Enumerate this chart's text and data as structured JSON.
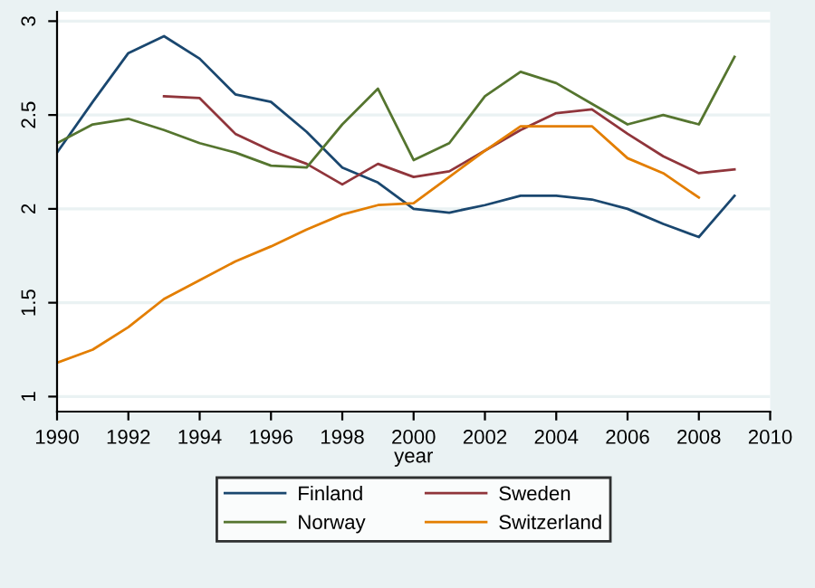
{
  "chart_data": {
    "type": "line",
    "xlabel": "year",
    "x": [
      1990,
      1991,
      1992,
      1993,
      1994,
      1995,
      1996,
      1997,
      1998,
      1999,
      2000,
      2001,
      2002,
      2003,
      2004,
      2005,
      2006,
      2007,
      2008,
      2009
    ],
    "series": [
      {
        "name": "Finland",
        "color": "#1a476f",
        "values": [
          2.3,
          2.57,
          2.83,
          2.92,
          2.8,
          2.61,
          2.57,
          2.41,
          2.22,
          2.14,
          2.0,
          1.98,
          2.02,
          2.07,
          2.07,
          2.05,
          2.0,
          1.92,
          1.85,
          2.07
        ]
      },
      {
        "name": "Sweden",
        "color": "#90353b",
        "values": [
          null,
          null,
          null,
          2.6,
          2.59,
          2.4,
          2.31,
          2.24,
          2.13,
          2.24,
          2.17,
          2.2,
          2.31,
          2.42,
          2.51,
          2.53,
          2.4,
          2.28,
          2.19,
          2.21
        ]
      },
      {
        "name": "Norway",
        "color": "#55752f",
        "values": [
          2.35,
          2.45,
          2.48,
          2.42,
          2.35,
          2.3,
          2.23,
          2.22,
          2.45,
          2.64,
          2.26,
          2.35,
          2.6,
          2.73,
          2.67,
          2.56,
          2.45,
          2.5,
          2.45,
          2.81
        ]
      },
      {
        "name": "Switzerland",
        "color": "#e37e00",
        "values": [
          1.18,
          1.25,
          1.37,
          1.52,
          1.62,
          1.72,
          1.8,
          1.89,
          1.97,
          2.02,
          2.03,
          2.17,
          2.31,
          2.44,
          2.44,
          2.44,
          2.27,
          2.19,
          2.06,
          null
        ]
      }
    ],
    "xlim": [
      1990,
      2010
    ],
    "xticks": [
      1990,
      1992,
      1994,
      1996,
      1998,
      2000,
      2002,
      2004,
      2006,
      2008,
      2010
    ],
    "ylim": [
      0.92,
      3.05
    ],
    "yticks": [
      1,
      1.5,
      2,
      2.5,
      3
    ],
    "grid": "y",
    "legend": "bottom",
    "marker": "none",
    "line_style": "solid"
  }
}
